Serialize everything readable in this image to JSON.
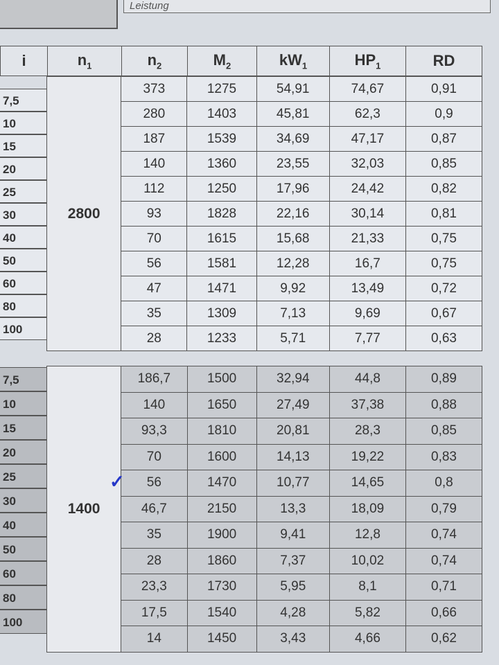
{
  "section_label": "Leistung",
  "headers": {
    "i": "i",
    "n1": "n",
    "n2": "n",
    "M2": "M",
    "kW1": "kW",
    "HP1": "HP",
    "RD": "RD",
    "sub1": "1",
    "sub2": "2"
  },
  "table1": {
    "n1": "2800",
    "i": [
      "7,5",
      "10",
      "15",
      "20",
      "25",
      "30",
      "40",
      "50",
      "60",
      "80",
      "100"
    ],
    "rows": [
      [
        "373",
        "1275",
        "54,91",
        "74,67",
        "0,91"
      ],
      [
        "280",
        "1403",
        "45,81",
        "62,3",
        "0,9"
      ],
      [
        "187",
        "1539",
        "34,69",
        "47,17",
        "0,87"
      ],
      [
        "140",
        "1360",
        "23,55",
        "32,03",
        "0,85"
      ],
      [
        "112",
        "1250",
        "17,96",
        "24,42",
        "0,82"
      ],
      [
        "93",
        "1828",
        "22,16",
        "30,14",
        "0,81"
      ],
      [
        "70",
        "1615",
        "15,68",
        "21,33",
        "0,75"
      ],
      [
        "56",
        "1581",
        "12,28",
        "16,7",
        "0,75"
      ],
      [
        "47",
        "1471",
        "9,92",
        "13,49",
        "0,72"
      ],
      [
        "35",
        "1309",
        "7,13",
        "9,69",
        "0,67"
      ],
      [
        "28",
        "1233",
        "5,71",
        "7,77",
        "0,63"
      ]
    ]
  },
  "table2": {
    "n1": "1400",
    "i": [
      "7,5",
      "10",
      "15",
      "20",
      "25",
      "30",
      "40",
      "50",
      "60",
      "80",
      "100"
    ],
    "rows": [
      [
        "186,7",
        "1500",
        "32,94",
        "44,8",
        "0,89"
      ],
      [
        "140",
        "1650",
        "27,49",
        "37,38",
        "0,88"
      ],
      [
        "93,3",
        "1810",
        "20,81",
        "28,3",
        "0,85"
      ],
      [
        "70",
        "1600",
        "14,13",
        "19,22",
        "0,83"
      ],
      [
        "56",
        "1470",
        "10,77",
        "14,65",
        "0,8"
      ],
      [
        "46,7",
        "2150",
        "13,3",
        "18,09",
        "0,79"
      ],
      [
        "35",
        "1900",
        "9,41",
        "12,8",
        "0,74"
      ],
      [
        "28",
        "1860",
        "7,37",
        "10,02",
        "0,74"
      ],
      [
        "23,3",
        "1730",
        "5,95",
        "8,1",
        "0,71"
      ],
      [
        "17,5",
        "1540",
        "4,28",
        "5,82",
        "0,66"
      ],
      [
        "14",
        "1450",
        "3,43",
        "4,66",
        "0,62"
      ]
    ]
  },
  "annotation": {
    "mark": "✓",
    "color": "#2436c8"
  }
}
